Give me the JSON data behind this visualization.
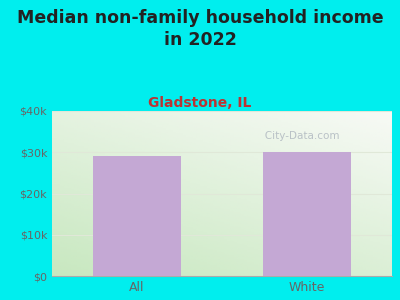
{
  "title": "Median non-family household income\nin 2022",
  "subtitle": "Gladstone, IL",
  "categories": [
    "All",
    "White"
  ],
  "values": [
    29000,
    30000
  ],
  "bar_color": "#c4a8d4",
  "background_color": "#00EEEE",
  "ylim": [
    0,
    40000
  ],
  "yticks": [
    0,
    10000,
    20000,
    30000,
    40000
  ],
  "ytick_labels": [
    "$0",
    "$10k",
    "$20k",
    "$30k",
    "$40k"
  ],
  "title_fontsize": 12.5,
  "subtitle_fontsize": 10,
  "subtitle_color": "#bb3333",
  "title_color": "#222222",
  "tick_color": "#666666",
  "xtick_fontsize": 9,
  "ytick_fontsize": 8,
  "watermark": "   City-Data.com",
  "watermark_color": "#b0b8c0",
  "grid_color": "#e0e8d8",
  "plot_bg_top": "#f0f5ee",
  "plot_bg_bottom": "#c8e8c0"
}
